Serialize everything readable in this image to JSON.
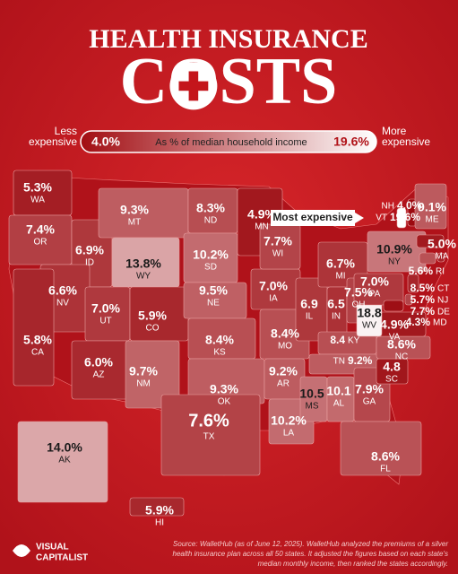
{
  "header": {
    "line1": "HEALTH INSURANCE",
    "line2": "COSTS"
  },
  "legend": {
    "low_text": "Less expensive",
    "high_text": "More expensive",
    "caption": "As % of median household income",
    "min": {
      "value": 4.0,
      "label": "4.0%"
    },
    "max": {
      "value": 19.6,
      "label": "19.6%"
    },
    "colors": [
      "#9c0a10",
      "#ffffff"
    ]
  },
  "callout": "Most expensive",
  "states": [
    {
      "abbr": "WA",
      "value": 5.3,
      "label": "5.3%"
    },
    {
      "abbr": "OR",
      "value": 7.4,
      "label": "7.4%"
    },
    {
      "abbr": "ID",
      "value": 6.9,
      "label": "6.9%"
    },
    {
      "abbr": "MT",
      "value": 9.3,
      "label": "9.3%"
    },
    {
      "abbr": "WY",
      "value": 13.8,
      "label": "13.8%"
    },
    {
      "abbr": "NV",
      "value": 6.6,
      "label": "6.6%"
    },
    {
      "abbr": "UT",
      "value": 7.0,
      "label": "7.0%"
    },
    {
      "abbr": "CA",
      "value": 5.8,
      "label": "5.8%"
    },
    {
      "abbr": "AZ",
      "value": 6.0,
      "label": "6.0%"
    },
    {
      "abbr": "CO",
      "value": 5.9,
      "label": "5.9%"
    },
    {
      "abbr": "NM",
      "value": 9.7,
      "label": "9.7%"
    },
    {
      "abbr": "ND",
      "value": 8.3,
      "label": "8.3%"
    },
    {
      "abbr": "SD",
      "value": 10.2,
      "label": "10.2%"
    },
    {
      "abbr": "NE",
      "value": 9.5,
      "label": "9.5%"
    },
    {
      "abbr": "KS",
      "value": 8.4,
      "label": "8.4%"
    },
    {
      "abbr": "OK",
      "value": 9.3,
      "label": "9.3%"
    },
    {
      "abbr": "TX",
      "value": 7.6,
      "label": "7.6%"
    },
    {
      "abbr": "MN",
      "value": 4.9,
      "label": "4.9%"
    },
    {
      "abbr": "IA",
      "value": 7.0,
      "label": "7.0%"
    },
    {
      "abbr": "MO",
      "value": 8.4,
      "label": "8.4%"
    },
    {
      "abbr": "AR",
      "value": 9.2,
      "label": "9.2%"
    },
    {
      "abbr": "LA",
      "value": 10.2,
      "label": "10.2%"
    },
    {
      "abbr": "WI",
      "value": 7.7,
      "label": "7.7%"
    },
    {
      "abbr": "IL",
      "value": 6.9,
      "label": "6.9"
    },
    {
      "abbr": "MI",
      "value": 6.7,
      "label": "6.7%"
    },
    {
      "abbr": "IN",
      "value": 6.5,
      "label": "6.5"
    },
    {
      "abbr": "OH",
      "value": 7.5,
      "label": "7.5%"
    },
    {
      "abbr": "KY",
      "value": 8.4,
      "label": "8.4"
    },
    {
      "abbr": "TN",
      "value": 9.2,
      "label": "9.2%"
    },
    {
      "abbr": "MS",
      "value": 10.5,
      "label": "10.5"
    },
    {
      "abbr": "AL",
      "value": 10.1,
      "label": "10.1"
    },
    {
      "abbr": "GA",
      "value": 7.9,
      "label": "7.9%"
    },
    {
      "abbr": "FL",
      "value": 8.6,
      "label": "8.6%"
    },
    {
      "abbr": "SC",
      "value": 4.8,
      "label": "4.8"
    },
    {
      "abbr": "NC",
      "value": 8.6,
      "label": "8.6%"
    },
    {
      "abbr": "VA",
      "value": 4.9,
      "label": "4.9%"
    },
    {
      "abbr": "WV",
      "value": 18.8,
      "label": "18.8"
    },
    {
      "abbr": "PA",
      "value": 7.0,
      "label": "7.0%"
    },
    {
      "abbr": "NY",
      "value": 10.9,
      "label": "10.9%"
    },
    {
      "abbr": "VT",
      "value": 19.6,
      "label": "19.6%"
    },
    {
      "abbr": "NH",
      "value": 4.0,
      "label": "4.0%"
    },
    {
      "abbr": "ME",
      "value": 9.1,
      "label": "9.1%"
    },
    {
      "abbr": "MA",
      "value": 5.0,
      "label": "5.0%"
    },
    {
      "abbr": "RI",
      "value": 5.6,
      "label": "5.6%"
    },
    {
      "abbr": "CT",
      "value": 8.5,
      "label": "8.5%"
    },
    {
      "abbr": "NJ",
      "value": 5.7,
      "label": "5.7%"
    },
    {
      "abbr": "DE",
      "value": 7.7,
      "label": "7.7%"
    },
    {
      "abbr": "MD",
      "value": 4.3,
      "label": "4.3%"
    },
    {
      "abbr": "AK",
      "value": 14.0,
      "label": "14.0%"
    },
    {
      "abbr": "HI",
      "value": 5.9,
      "label": "5.9%"
    }
  ],
  "source": [
    "Source: WalletHub (as of June 12, 2025). WalletHub analyzed the premiums of a silver",
    "health insurance plan across all 50 states. It adjusted the figures based on each state's",
    "median monthly income, then ranked the states accordingly."
  ],
  "logo": [
    "VISUAL",
    "CAPITALIST"
  ]
}
